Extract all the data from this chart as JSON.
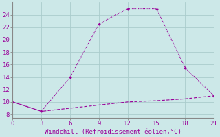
{
  "xlabel": "Windchill (Refroidissement éolien,°C)",
  "line1_x": [
    0,
    3,
    6,
    9,
    12,
    15,
    18,
    21
  ],
  "line1_y": [
    10,
    8.5,
    14,
    22.5,
    25,
    25,
    15.5,
    11
  ],
  "line2_x": [
    0,
    3,
    6,
    9,
    12,
    15,
    18,
    21
  ],
  "line2_y": [
    10,
    8.5,
    9.0,
    9.5,
    10.0,
    10.2,
    10.5,
    11
  ],
  "line_color": "#990099",
  "bg_color": "#cce8e8",
  "xlim": [
    0,
    21
  ],
  "ylim": [
    7.5,
    26
  ],
  "xticks": [
    0,
    3,
    6,
    9,
    12,
    15,
    18,
    21
  ],
  "yticks": [
    8,
    10,
    12,
    14,
    16,
    18,
    20,
    22,
    24
  ],
  "grid_color": "#aacccc",
  "markersize": 3.5
}
